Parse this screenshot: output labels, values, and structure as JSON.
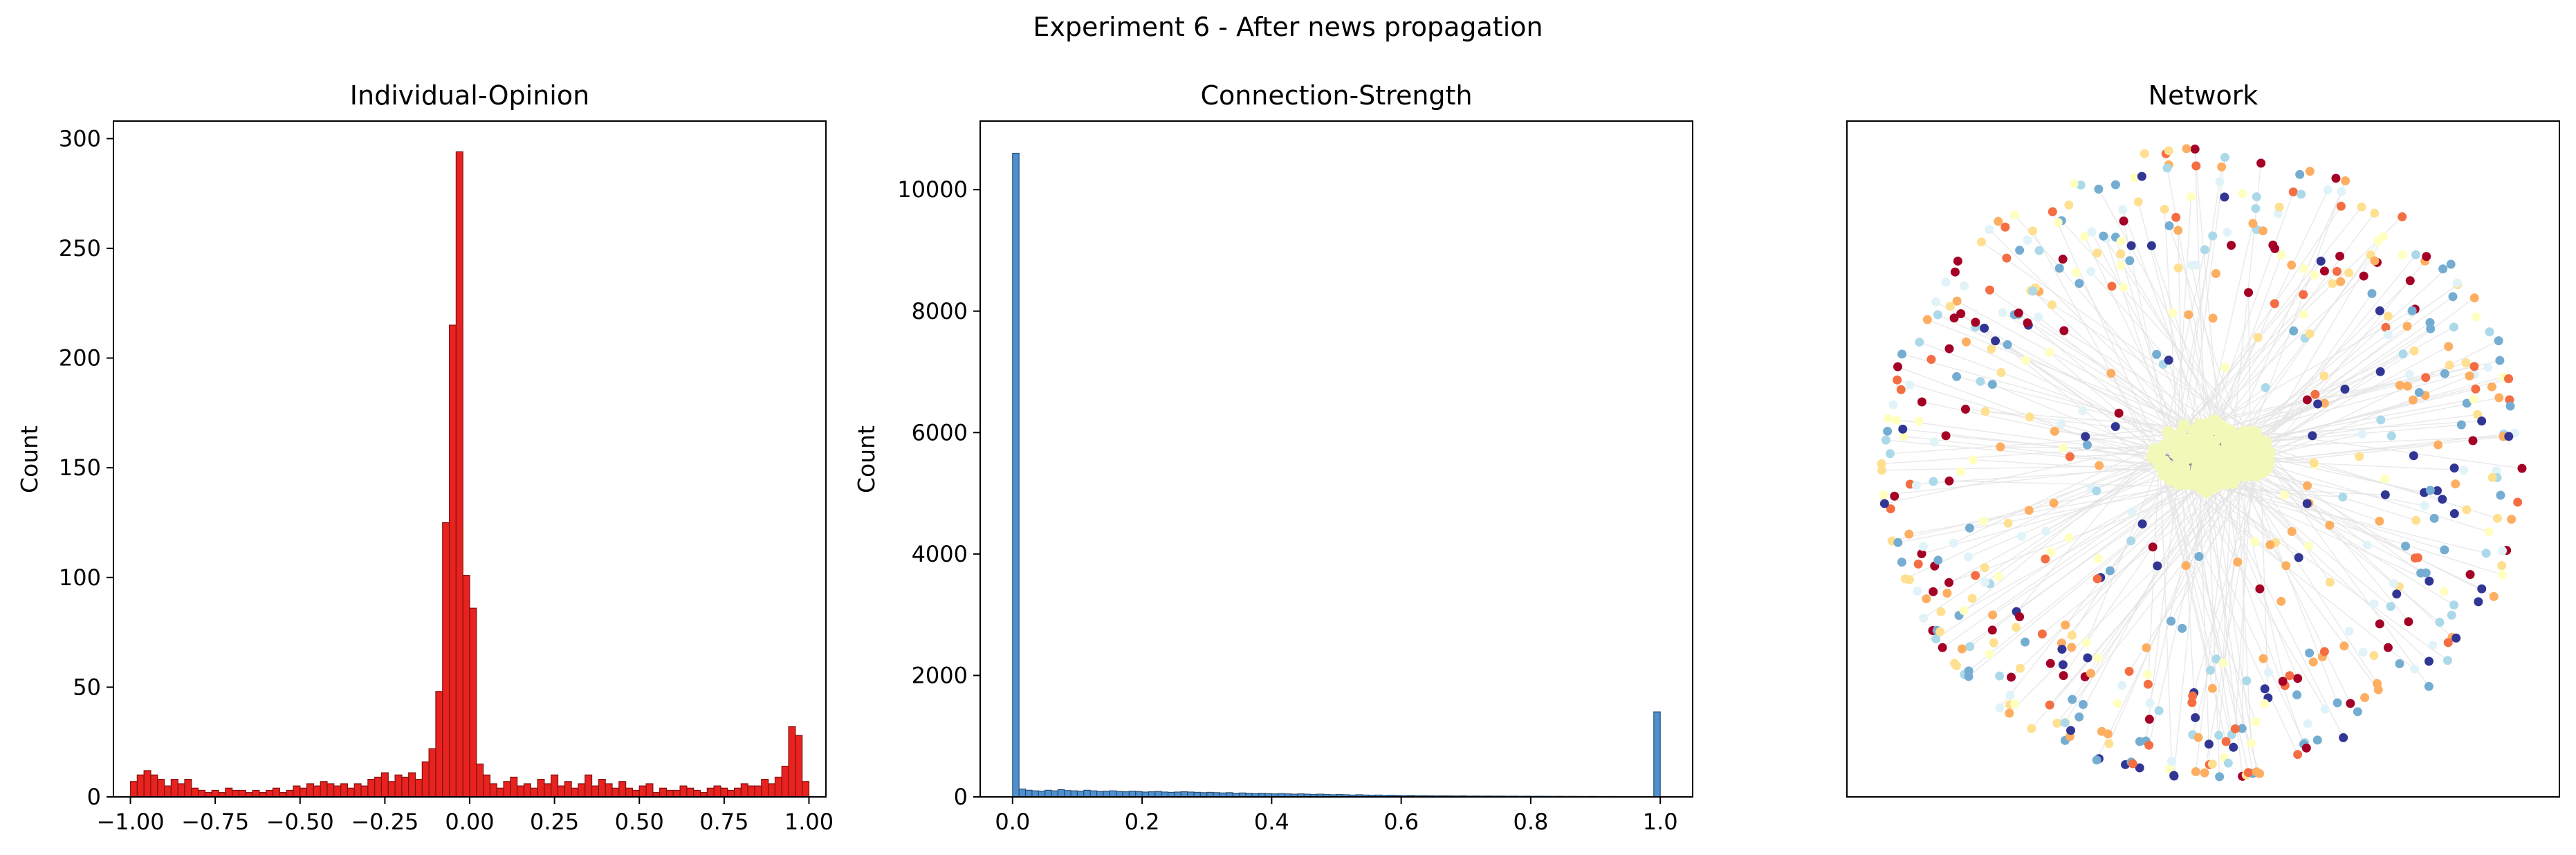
{
  "figure": {
    "suptitle": "Experiment 6 - After news propagation"
  },
  "chart_data": [
    {
      "type": "bar",
      "title": "Individual-Opinion",
      "xlabel": "",
      "ylabel": "Count",
      "xlim": [
        -1.05,
        1.05
      ],
      "ylim": [
        0,
        308
      ],
      "bin_width": 0.02,
      "bin_starts": [
        -1.0,
        -0.98,
        -0.96,
        -0.94,
        -0.92,
        -0.9,
        -0.88,
        -0.86,
        -0.84,
        -0.82,
        -0.8,
        -0.78,
        -0.76,
        -0.74,
        -0.72,
        -0.7,
        -0.68,
        -0.66,
        -0.64,
        -0.62,
        -0.6,
        -0.58,
        -0.56,
        -0.54,
        -0.52,
        -0.5,
        -0.48,
        -0.46,
        -0.44,
        -0.42,
        -0.4,
        -0.38,
        -0.36,
        -0.34,
        -0.32,
        -0.3,
        -0.28,
        -0.26,
        -0.24,
        -0.22,
        -0.2,
        -0.18,
        -0.16,
        -0.14,
        -0.12,
        -0.1,
        -0.08,
        -0.06,
        -0.04,
        -0.02,
        0.0,
        0.02,
        0.04,
        0.06,
        0.08,
        0.1,
        0.12,
        0.14,
        0.16,
        0.18,
        0.2,
        0.22,
        0.24,
        0.26,
        0.28,
        0.3,
        0.32,
        0.34,
        0.36,
        0.38,
        0.4,
        0.42,
        0.44,
        0.46,
        0.48,
        0.5,
        0.52,
        0.54,
        0.56,
        0.58,
        0.6,
        0.62,
        0.64,
        0.66,
        0.68,
        0.7,
        0.72,
        0.74,
        0.76,
        0.78,
        0.8,
        0.82,
        0.84,
        0.86,
        0.88,
        0.9,
        0.92,
        0.94,
        0.96,
        0.98
      ],
      "values": [
        7,
        10,
        12,
        10,
        8,
        5,
        8,
        6,
        8,
        4,
        3,
        2,
        3,
        2,
        4,
        3,
        3,
        2,
        3,
        2,
        3,
        4,
        2,
        3,
        5,
        4,
        6,
        5,
        7,
        6,
        5,
        6,
        4,
        6,
        5,
        8,
        9,
        11,
        7,
        10,
        9,
        11,
        8,
        16,
        22,
        48,
        125,
        215,
        294,
        101,
        86,
        15,
        10,
        6,
        4,
        7,
        9,
        5,
        6,
        4,
        8,
        6,
        10,
        5,
        7,
        4,
        6,
        10,
        5,
        8,
        6,
        4,
        7,
        4,
        3,
        5,
        6,
        2,
        4,
        3,
        3,
        5,
        4,
        3,
        2,
        4,
        5,
        4,
        3,
        4,
        6,
        5,
        5,
        8,
        6,
        9,
        14,
        32,
        28,
        7
      ],
      "xticks": [
        "−1.00",
        "−0.75",
        "−0.50",
        "−0.25",
        "0.00",
        "0.25",
        "0.50",
        "0.75",
        "1.00"
      ],
      "xtick_values": [
        -1.0,
        -0.75,
        -0.5,
        -0.25,
        0.0,
        0.25,
        0.5,
        0.75,
        1.0
      ],
      "yticks": [
        "0",
        "50",
        "100",
        "150",
        "200",
        "250",
        "300"
      ],
      "ytick_values": [
        0,
        50,
        100,
        150,
        200,
        250,
        300
      ],
      "color": "#e8221f"
    },
    {
      "type": "bar",
      "title": "Connection-Strength",
      "xlabel": "",
      "ylabel": "Count",
      "xlim": [
        -0.05,
        1.05
      ],
      "ylim": [
        0,
        11130
      ],
      "bin_width": 0.01,
      "bin_starts": [
        0.0,
        0.01,
        0.02,
        0.03,
        0.04,
        0.05,
        0.06,
        0.07,
        0.08,
        0.09,
        0.1,
        0.11,
        0.12,
        0.13,
        0.14,
        0.15,
        0.16,
        0.17,
        0.18,
        0.19,
        0.2,
        0.21,
        0.22,
        0.23,
        0.24,
        0.25,
        0.26,
        0.27,
        0.28,
        0.29,
        0.3,
        0.31,
        0.32,
        0.33,
        0.34,
        0.35,
        0.36,
        0.37,
        0.38,
        0.39,
        0.4,
        0.41,
        0.42,
        0.43,
        0.44,
        0.45,
        0.46,
        0.47,
        0.48,
        0.49,
        0.5,
        0.51,
        0.52,
        0.53,
        0.54,
        0.55,
        0.56,
        0.57,
        0.58,
        0.59,
        0.6,
        0.61,
        0.62,
        0.63,
        0.64,
        0.65,
        0.66,
        0.67,
        0.68,
        0.69,
        0.7,
        0.71,
        0.72,
        0.73,
        0.74,
        0.75,
        0.76,
        0.77,
        0.78,
        0.79,
        0.8,
        0.81,
        0.82,
        0.83,
        0.84,
        0.85,
        0.86,
        0.87,
        0.88,
        0.89,
        0.9,
        0.91,
        0.92,
        0.93,
        0.94,
        0.95,
        0.96,
        0.97,
        0.98,
        0.99
      ],
      "values": [
        10600,
        130,
        110,
        100,
        95,
        110,
        100,
        120,
        105,
        100,
        95,
        110,
        100,
        90,
        95,
        100,
        90,
        85,
        95,
        90,
        80,
        85,
        90,
        80,
        75,
        80,
        85,
        80,
        75,
        70,
        75,
        70,
        65,
        70,
        60,
        65,
        60,
        55,
        60,
        55,
        50,
        55,
        50,
        45,
        50,
        45,
        40,
        45,
        40,
        35,
        40,
        35,
        30,
        35,
        30,
        28,
        30,
        25,
        28,
        25,
        22,
        25,
        20,
        22,
        20,
        18,
        20,
        18,
        16,
        18,
        15,
        16,
        14,
        15,
        13,
        14,
        12,
        13,
        11,
        12,
        10,
        11,
        10,
        9,
        10,
        8,
        9,
        8,
        7,
        8,
        7,
        6,
        7,
        6,
        5,
        6,
        5,
        5,
        6,
        1400
      ],
      "xticks": [
        "0.0",
        "0.2",
        "0.4",
        "0.6",
        "0.8",
        "1.0"
      ],
      "xtick_values": [
        0.0,
        0.2,
        0.4,
        0.6,
        0.8,
        1.0
      ],
      "yticks": [
        "0",
        "2000",
        "4000",
        "6000",
        "8000",
        "10000"
      ],
      "ytick_values": [
        0,
        2000,
        4000,
        6000,
        8000,
        10000
      ],
      "color": "#4d90d0"
    },
    {
      "type": "scatter",
      "title": "Network",
      "description_free": true,
      "grid": false,
      "edge_color": "#e4e4e4",
      "node_colormap": [
        "#a50026",
        "#f46d43",
        "#fdae61",
        "#fee090",
        "#ffffbf",
        "#e0f3f8",
        "#abd9e9",
        "#74add1",
        "#313695"
      ],
      "center_cluster_color": "#f2f9b8",
      "center_cluster_nodes": 220,
      "outer_nodes": 430,
      "inner_scatter_nodes": 130
    }
  ]
}
